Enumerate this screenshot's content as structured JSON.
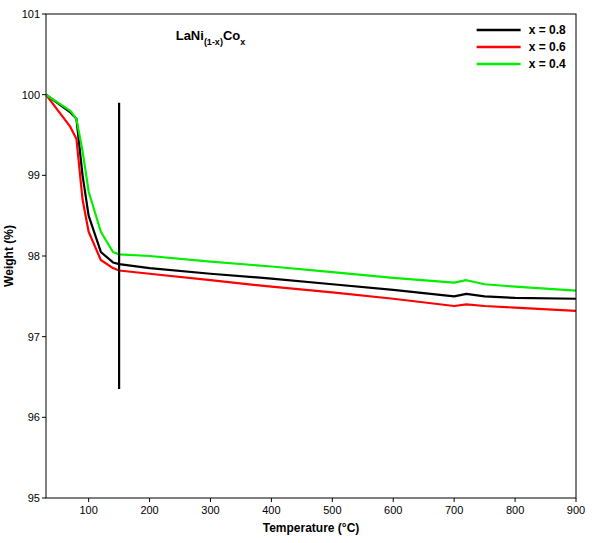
{
  "chart_data": {
    "type": "line",
    "title": "LaNi(1-x)Cox",
    "x_label": "Temperature (°C)",
    "y_label": "Weight (%)",
    "x": [
      30,
      70,
      80,
      90,
      100,
      120,
      140,
      150,
      200,
      300,
      400,
      500,
      600,
      700,
      720,
      750,
      800,
      900
    ],
    "series": [
      {
        "name": "x = 0.8",
        "color": "#000000",
        "values": [
          100,
          99.78,
          99.7,
          99.0,
          98.5,
          98.05,
          97.92,
          97.9,
          97.85,
          97.78,
          97.72,
          97.65,
          97.58,
          97.5,
          97.53,
          97.5,
          97.48,
          97.47
        ]
      },
      {
        "name": "x = 0.6",
        "color": "#ff0000",
        "values": [
          100,
          99.6,
          99.45,
          98.7,
          98.3,
          97.95,
          97.85,
          97.82,
          97.78,
          97.7,
          97.62,
          97.55,
          97.47,
          97.38,
          97.4,
          97.38,
          97.36,
          97.32
        ]
      },
      {
        "name": "x = 0.4",
        "color": "#00ee00",
        "values": [
          100,
          99.8,
          99.7,
          99.3,
          98.8,
          98.3,
          98.05,
          98.02,
          98.0,
          97.93,
          97.87,
          97.8,
          97.73,
          97.67,
          97.7,
          97.65,
          97.62,
          97.57
        ]
      }
    ],
    "reference_line": {
      "x": [
        150,
        150
      ],
      "values": [
        96.35,
        99.9
      ],
      "color": "#000000"
    },
    "xlim": [
      30,
      900
    ],
    "xticks": [
      100,
      200,
      300,
      400,
      500,
      600,
      700,
      800,
      900
    ],
    "ylim": [
      95,
      101
    ],
    "yticks": [
      95,
      96,
      97,
      98,
      99,
      100,
      101
    ],
    "grid": false,
    "legend": "upper right"
  }
}
